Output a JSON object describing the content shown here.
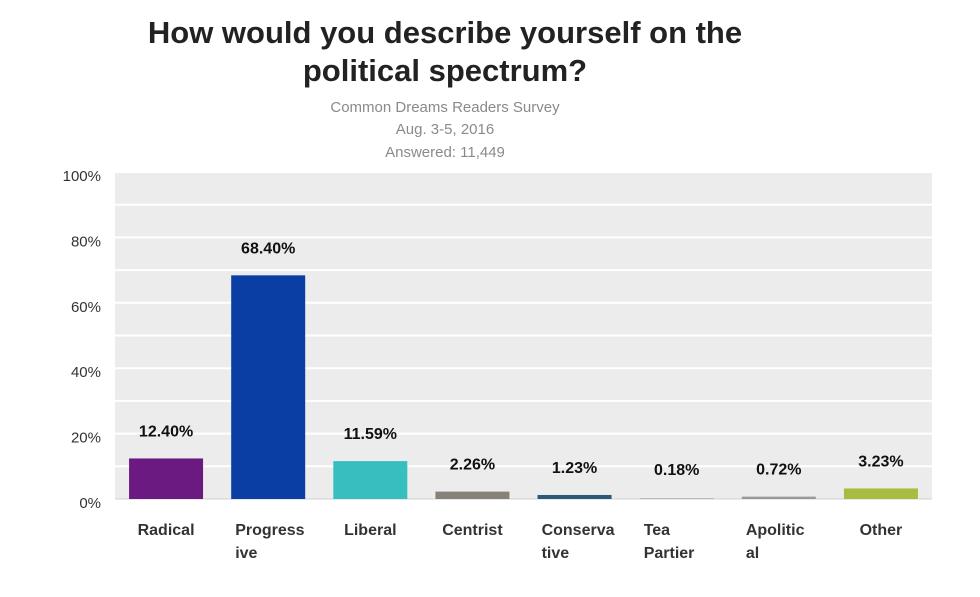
{
  "chart_data": {
    "type": "bar",
    "title_line1": "How would you describe yourself on the",
    "title_line2": "political spectrum?",
    "subtitle_line1": "Common Dreams Readers Survey",
    "subtitle_line2": "Aug. 3-5, 2016",
    "subtitle_line3": "Answered:  11,449",
    "categories": [
      [
        "Radical"
      ],
      [
        "Progress",
        "ive"
      ],
      [
        "Liberal"
      ],
      [
        "Centrist"
      ],
      [
        "Conserva",
        "tive"
      ],
      [
        "Tea",
        "Partier"
      ],
      [
        "Apolitic",
        "al"
      ],
      [
        "Other"
      ]
    ],
    "values": [
      12.4,
      68.4,
      11.59,
      2.26,
      1.23,
      0.18,
      0.72,
      3.23
    ],
    "value_labels": [
      "12.40%",
      "68.40%",
      "11.59%",
      "2.26%",
      "1.23%",
      "0.18%",
      "0.72%",
      "3.23%"
    ],
    "colors": [
      "#6b1a82",
      "#0a3ea5",
      "#37bfbf",
      "#868278",
      "#2a5a78",
      "#999999",
      "#999999",
      "#a7bd42"
    ],
    "y_ticks": [
      "0%",
      "20%",
      "40%",
      "60%",
      "80%",
      "100%"
    ],
    "ylim": [
      0,
      100
    ],
    "grid": true
  }
}
